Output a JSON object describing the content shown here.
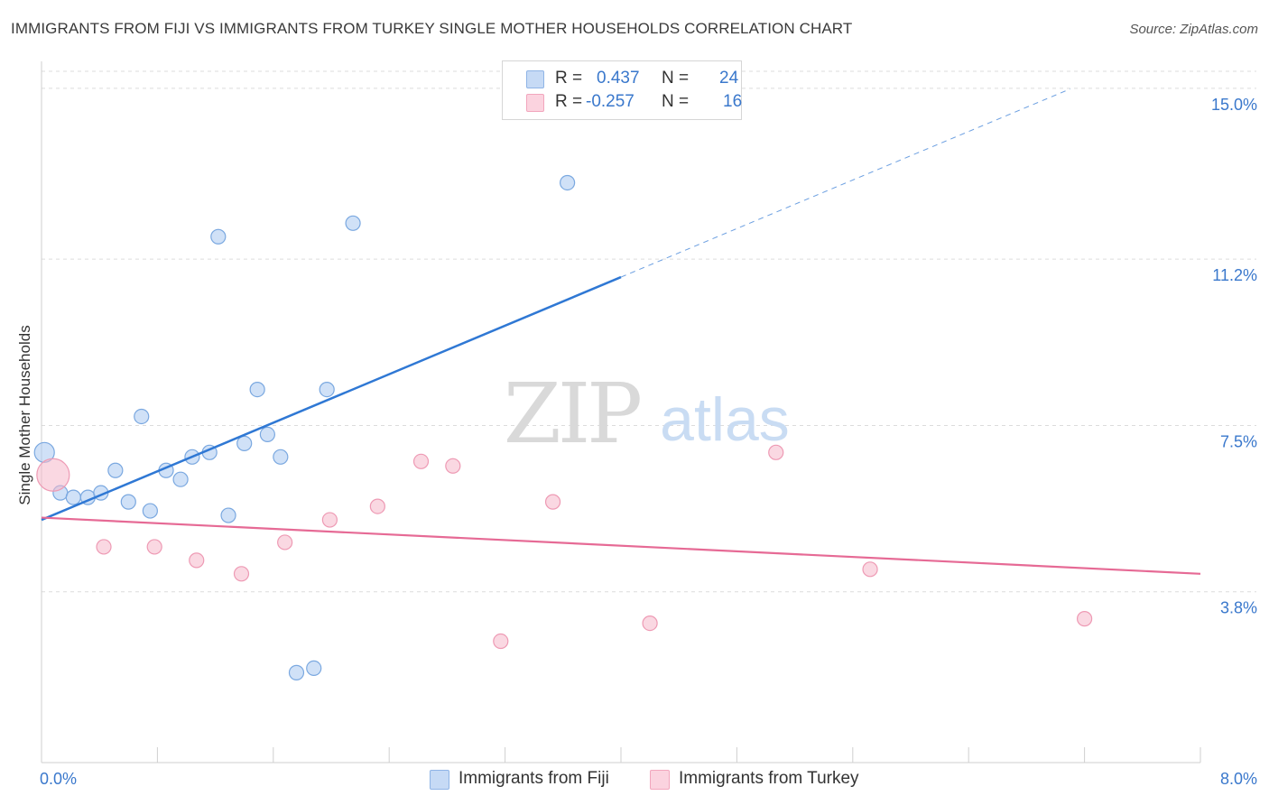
{
  "title": "IMMIGRANTS FROM FIJI VS IMMIGRANTS FROM TURKEY SINGLE MOTHER HOUSEHOLDS CORRELATION CHART",
  "source": "Source: ZipAtlas.com",
  "watermark": {
    "zip": "ZIP",
    "atlas": "atlas"
  },
  "legend": {
    "rows": [
      {
        "r_label": "R = ",
        "r_value": "0.437",
        "n_label": "N = ",
        "n_value": "24",
        "color": "#a9c8f0"
      },
      {
        "r_label": "R = ",
        "r_value": "-0.257",
        "n_label": "N = ",
        "n_value": "16",
        "color": "#f6b8cb"
      }
    ]
  },
  "chart_data": {
    "type": "scatter",
    "title": "IMMIGRANTS FROM FIJI VS IMMIGRANTS FROM TURKEY SINGLE MOTHER HOUSEHOLDS CORRELATION CHART",
    "xlabel": "",
    "ylabel": "Single Mother Households",
    "xlim": [
      0,
      8
    ],
    "ylim": [
      0,
      15.6
    ],
    "x_tick_labels": [
      "0.0%",
      "8.0%"
    ],
    "y_ticks": [
      3.8,
      7.5,
      11.2,
      15.0
    ],
    "y_tick_labels": [
      "3.8%",
      "7.5%",
      "11.2%",
      "15.0%"
    ],
    "grid": true,
    "series": [
      {
        "name": "Immigrants from Fiji",
        "color": "#a9c8f0",
        "stroke": "#7aa8e0",
        "trend_color": "#2f78d4",
        "points": [
          [
            0.02,
            6.9
          ],
          [
            0.13,
            6.0
          ],
          [
            0.22,
            5.9
          ],
          [
            0.32,
            5.9
          ],
          [
            0.41,
            6.0
          ],
          [
            0.51,
            6.5
          ],
          [
            0.6,
            5.8
          ],
          [
            0.69,
            7.7
          ],
          [
            0.75,
            5.6
          ],
          [
            0.86,
            6.5
          ],
          [
            0.96,
            6.3
          ],
          [
            1.04,
            6.8
          ],
          [
            1.16,
            6.9
          ],
          [
            1.22,
            11.7
          ],
          [
            1.29,
            5.5
          ],
          [
            1.4,
            7.1
          ],
          [
            1.49,
            8.3
          ],
          [
            1.56,
            7.3
          ],
          [
            1.65,
            6.8
          ],
          [
            1.76,
            2.0
          ],
          [
            1.88,
            2.1
          ],
          [
            1.97,
            8.3
          ],
          [
            2.15,
            12.0
          ],
          [
            3.63,
            12.9
          ]
        ],
        "trend": {
          "x0": 0.0,
          "y0": 5.4,
          "x1": 4.0,
          "y1": 10.8,
          "dash_to_x": 7.1
        }
      },
      {
        "name": "Immigrants from Turkey",
        "color": "#f6b8cb",
        "stroke": "#ee9ab4",
        "trend_color": "#e66a95",
        "points": [
          [
            0.08,
            6.4
          ],
          [
            0.43,
            4.8
          ],
          [
            0.78,
            4.8
          ],
          [
            1.07,
            4.5
          ],
          [
            1.38,
            4.2
          ],
          [
            1.68,
            4.9
          ],
          [
            1.99,
            5.4
          ],
          [
            2.32,
            5.7
          ],
          [
            2.62,
            6.7
          ],
          [
            2.84,
            6.6
          ],
          [
            3.17,
            2.7
          ],
          [
            3.53,
            5.8
          ],
          [
            4.2,
            3.1
          ],
          [
            5.07,
            6.9
          ],
          [
            5.72,
            4.3
          ],
          [
            7.2,
            3.2
          ]
        ],
        "trend": {
          "x0": 0.0,
          "y0": 5.45,
          "x1": 8.0,
          "y1": 4.2
        }
      }
    ]
  }
}
